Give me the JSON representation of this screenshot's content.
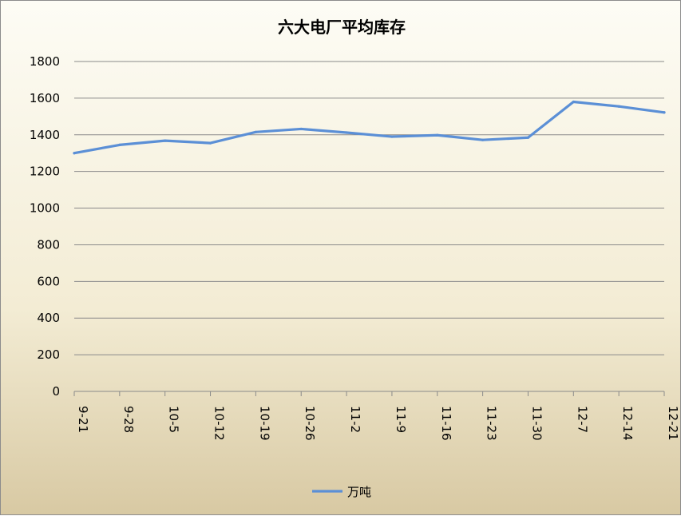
{
  "chart_data": {
    "type": "line",
    "title": "六大电厂平均库存",
    "xlabel": "",
    "ylabel": "",
    "categories": [
      "9-21",
      "9-28",
      "10-5",
      "10-12",
      "10-19",
      "10-26",
      "11-2",
      "11-9",
      "11-16",
      "11-23",
      "11-30",
      "12-7",
      "12-14",
      "12-21"
    ],
    "series": [
      {
        "name": "万吨",
        "values": [
          1300,
          1345,
          1368,
          1355,
          1415,
          1432,
          1412,
          1390,
          1398,
          1372,
          1385,
          1580,
          1555,
          1522
        ]
      }
    ],
    "ylim": [
      0,
      1800
    ],
    "yticks": [
      0,
      200,
      400,
      600,
      800,
      1000,
      1200,
      1400,
      1600,
      1800
    ],
    "grid": true,
    "legend_position": "bottom",
    "colors": {
      "series": "#5b8fd6"
    }
  }
}
